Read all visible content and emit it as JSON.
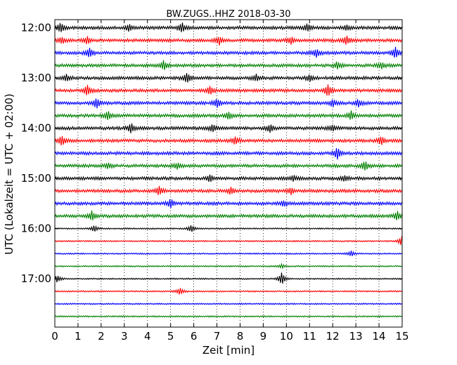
{
  "chart_data": {
    "type": "line",
    "title": "BW.ZUGS..HHZ 2018-03-30",
    "xlabel": "Zeit  [min]",
    "ylabel": "UTC (Lokalzeit = UTC + 02:00)",
    "xlim": [
      0,
      15
    ],
    "x_ticks": [
      0,
      1,
      2,
      3,
      4,
      5,
      6,
      7,
      8,
      9,
      10,
      11,
      12,
      13,
      14,
      15
    ],
    "y_tick_labels": [
      "12:00",
      "13:00",
      "14:00",
      "15:00",
      "16:00",
      "17:00"
    ],
    "traces_per_hour": 4,
    "trace_start_times": [
      "12:00",
      "12:15",
      "12:30",
      "12:45",
      "13:00",
      "13:15",
      "13:30",
      "13:45",
      "14:00",
      "14:15",
      "14:30",
      "14:45",
      "15:00",
      "15:15",
      "15:30",
      "15:45",
      "16:00",
      "16:15",
      "16:30",
      "16:45",
      "17:00",
      "17:15",
      "17:30",
      "17:45"
    ],
    "color_cycle": [
      "#000000",
      "#ff0000",
      "#0000ff",
      "#008000"
    ],
    "vertical_grid": "dotted",
    "spikes": [
      [
        [
          0.25,
          1.0
        ],
        [
          3.2,
          0.7
        ],
        [
          5.5,
          1.0
        ],
        [
          10.9,
          0.8
        ],
        [
          12.6,
          0.5
        ]
      ],
      [
        [
          0.3,
          0.7
        ],
        [
          1.4,
          0.8
        ],
        [
          7.1,
          0.9
        ],
        [
          10.2,
          0.7
        ],
        [
          12.6,
          0.9
        ]
      ],
      [
        [
          1.5,
          0.9
        ],
        [
          11.3,
          0.9
        ],
        [
          14.7,
          1.2
        ]
      ],
      [
        [
          4.7,
          1.0
        ],
        [
          12.2,
          0.8
        ],
        [
          14.1,
          0.6
        ]
      ],
      [
        [
          0.5,
          0.7
        ],
        [
          5.7,
          1.0
        ],
        [
          8.7,
          0.7
        ],
        [
          11.0,
          0.7
        ]
      ],
      [
        [
          1.4,
          1.1
        ],
        [
          6.7,
          0.8
        ],
        [
          11.8,
          1.3
        ]
      ],
      [
        [
          1.8,
          1.1
        ],
        [
          7.0,
          1.0
        ],
        [
          12.0,
          0.8
        ],
        [
          13.1,
          0.8
        ]
      ],
      [
        [
          2.3,
          0.9
        ],
        [
          7.5,
          0.8
        ],
        [
          12.8,
          0.9
        ]
      ],
      [
        [
          3.3,
          1.0
        ],
        [
          6.8,
          0.8
        ],
        [
          9.3,
          0.9
        ],
        [
          12.0,
          0.6
        ]
      ],
      [
        [
          0.3,
          1.0
        ],
        [
          7.8,
          0.8
        ],
        [
          14.1,
          0.9
        ]
      ],
      [
        [
          12.2,
          1.2
        ]
      ],
      [
        [
          2.3,
          0.6
        ],
        [
          5.3,
          0.7
        ],
        [
          13.4,
          1.0
        ]
      ],
      [
        [
          6.7,
          0.7
        ],
        [
          10.3,
          0.6
        ],
        [
          12.5,
          0.6
        ]
      ],
      [
        [
          4.5,
          1.0
        ],
        [
          7.6,
          0.7
        ],
        [
          10.2,
          0.6
        ]
      ],
      [
        [
          5.0,
          0.9
        ],
        [
          9.9,
          0.6
        ]
      ],
      [
        [
          1.6,
          1.0
        ],
        [
          14.8,
          0.9
        ]
      ],
      [
        [
          1.7,
          0.7
        ],
        [
          5.9,
          0.8
        ]
      ],
      [
        [
          15.0,
          1.3
        ]
      ],
      [
        [
          12.8,
          0.6
        ]
      ],
      [
        [
          9.8,
          0.4
        ]
      ],
      [
        [
          0.1,
          0.8
        ],
        [
          9.8,
          1.4
        ]
      ],
      [
        [
          5.4,
          0.8
        ]
      ],
      [],
      []
    ]
  }
}
